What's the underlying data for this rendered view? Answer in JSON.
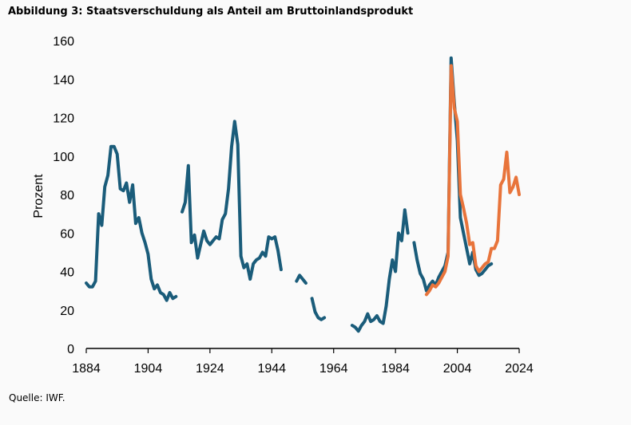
{
  "chart_data": {
    "type": "line",
    "title": "Abbildung 3: Staatsverschuldung als Anteil am Bruttoinlandsprodukt",
    "source": "Quelle: IWF.",
    "ylabel": "Prozent",
    "xlabel": "",
    "xlim": [
      1884,
      2024
    ],
    "ylim": [
      0,
      160
    ],
    "xticks": [
      1884,
      1904,
      1924,
      1944,
      1964,
      1984,
      2004,
      2024
    ],
    "yticks": [
      0,
      20,
      40,
      60,
      80,
      100,
      120,
      140,
      160
    ],
    "grid": false,
    "legend": "none",
    "series": [
      {
        "color": "#1a5c7a",
        "segments": [
          [
            [
              1884,
              34
            ],
            [
              1885,
              32
            ],
            [
              1886,
              32
            ],
            [
              1887,
              35
            ],
            [
              1888,
              70
            ],
            [
              1889,
              64
            ],
            [
              1890,
              84
            ],
            [
              1891,
              90
            ],
            [
              1892,
              105
            ],
            [
              1893,
              105
            ],
            [
              1894,
              101
            ],
            [
              1895,
              83
            ],
            [
              1896,
              82
            ],
            [
              1897,
              86
            ],
            [
              1898,
              76
            ],
            [
              1899,
              85
            ],
            [
              1900,
              65
            ],
            [
              1901,
              68
            ],
            [
              1902,
              60
            ],
            [
              1903,
              55
            ],
            [
              1904,
              49
            ],
            [
              1905,
              36
            ],
            [
              1906,
              31
            ],
            [
              1907,
              33
            ],
            [
              1908,
              29
            ],
            [
              1909,
              28
            ],
            [
              1910,
              25
            ],
            [
              1911,
              29
            ],
            [
              1912,
              26
            ],
            [
              1913,
              27
            ]
          ],
          [
            [
              1915,
              71
            ],
            [
              1916,
              76
            ],
            [
              1917,
              95
            ],
            [
              1918,
              55
            ],
            [
              1919,
              59
            ],
            [
              1920,
              47
            ],
            [
              1921,
              54
            ],
            [
              1922,
              61
            ],
            [
              1923,
              56
            ],
            [
              1924,
              54
            ],
            [
              1925,
              56
            ],
            [
              1926,
              58
            ],
            [
              1927,
              57
            ],
            [
              1928,
              67
            ],
            [
              1929,
              70
            ],
            [
              1930,
              83
            ],
            [
              1931,
              105
            ],
            [
              1932,
              118
            ],
            [
              1933,
              106
            ],
            [
              1934,
              48
            ],
            [
              1935,
              42
            ],
            [
              1936,
              44
            ],
            [
              1937,
              36
            ],
            [
              1938,
              44
            ],
            [
              1939,
              46
            ],
            [
              1940,
              47
            ],
            [
              1941,
              50
            ],
            [
              1942,
              48
            ],
            [
              1943,
              58
            ],
            [
              1944,
              57
            ],
            [
              1945,
              58
            ],
            [
              1946,
              51
            ],
            [
              1947,
              41
            ]
          ],
          [
            [
              1952,
              35
            ],
            [
              1953,
              38
            ],
            [
              1954,
              36
            ],
            [
              1955,
              34
            ]
          ],
          [
            [
              1957,
              26
            ],
            [
              1958,
              19
            ],
            [
              1959,
              16
            ],
            [
              1960,
              15
            ],
            [
              1961,
              16
            ]
          ],
          [
            [
              1970,
              12
            ],
            [
              1971,
              11
            ],
            [
              1972,
              9
            ],
            [
              1973,
              12
            ],
            [
              1974,
              14
            ],
            [
              1975,
              18
            ],
            [
              1976,
              14
            ],
            [
              1977,
              15
            ],
            [
              1978,
              17
            ],
            [
              1979,
              14
            ],
            [
              1980,
              13
            ],
            [
              1981,
              22
            ],
            [
              1982,
              36
            ],
            [
              1983,
              46
            ],
            [
              1984,
              40
            ],
            [
              1985,
              60
            ],
            [
              1986,
              56
            ],
            [
              1987,
              72
            ],
            [
              1988,
              60
            ]
          ],
          [
            [
              1990,
              55
            ],
            [
              1991,
              46
            ],
            [
              1992,
              39
            ],
            [
              1993,
              36
            ],
            [
              1994,
              30
            ],
            [
              1995,
              33
            ],
            [
              1996,
              35
            ],
            [
              1997,
              33
            ],
            [
              1998,
              37
            ],
            [
              1999,
              40
            ],
            [
              2000,
              43
            ],
            [
              2001,
              50
            ],
            [
              2002,
              151
            ],
            [
              2003,
              128
            ],
            [
              2004,
              108
            ],
            [
              2005,
              68
            ],
            [
              2006,
              60
            ],
            [
              2007,
              52
            ],
            [
              2008,
              44
            ],
            [
              2009,
              50
            ],
            [
              2010,
              41
            ],
            [
              2011,
              38
            ],
            [
              2012,
              39
            ],
            [
              2013,
              41
            ],
            [
              2014,
              43
            ],
            [
              2015,
              44
            ]
          ]
        ]
      },
      {
        "color": "#e8743b",
        "segments": [
          [
            [
              1994,
              28
            ],
            [
              1995,
              30
            ],
            [
              1996,
              33
            ],
            [
              1997,
              32
            ],
            [
              1998,
              34
            ],
            [
              1999,
              37
            ],
            [
              2000,
              40
            ],
            [
              2001,
              48
            ],
            [
              2002,
              147
            ],
            [
              2003,
              125
            ],
            [
              2004,
              118
            ],
            [
              2005,
              80
            ],
            [
              2006,
              73
            ],
            [
              2007,
              65
            ],
            [
              2008,
              54
            ],
            [
              2009,
              55
            ],
            [
              2010,
              43
            ],
            [
              2011,
              40
            ],
            [
              2012,
              42
            ],
            [
              2013,
              44
            ],
            [
              2014,
              45
            ],
            [
              2015,
              52
            ],
            [
              2016,
              52
            ],
            [
              2017,
              56
            ],
            [
              2018,
              85
            ],
            [
              2019,
              88
            ],
            [
              2020,
              102
            ],
            [
              2021,
              81
            ],
            [
              2022,
              84
            ],
            [
              2023,
              89
            ],
            [
              2024,
              80
            ]
          ]
        ]
      }
    ]
  }
}
